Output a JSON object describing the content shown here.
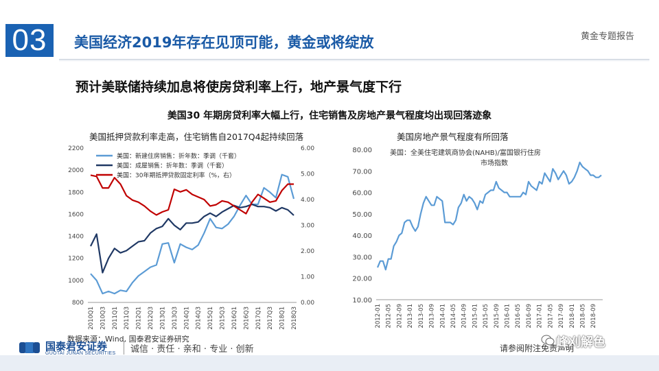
{
  "section": {
    "number": "03"
  },
  "slide_title": "美国经济2019年存在见顶可能，黄金或将绽放",
  "report_tag": "黄金专题报告",
  "headline": "预计美联储持续加息将使房贷利率上行，地产景气度下行",
  "subheadline": "美国30 年期房贷利率大幅上行，住宅销售及房地产景气程度均出现回落迹象",
  "source_note": "数据来源：Wind, 国泰君安证券研究",
  "footer": {
    "logo_cn": "国泰君安证券",
    "logo_en": "GUOTAI JUNAN SECURITIES",
    "slogan": "诚信 · 责任 · 亲和 · 专业 · 创新",
    "disclaimer": "请参阅附注免责声明",
    "watermark": "峰刈解色",
    "brand_color": "#1c4f94"
  },
  "chart_data": [
    {
      "type": "line",
      "title": "美国抵押贷款利率走高，住宅销售自2017Q4起持续回落",
      "categories": [
        "2010Q1",
        "2010Q2",
        "2010Q3",
        "2010Q4",
        "2011Q1",
        "2011Q2",
        "2011Q3",
        "2011Q4",
        "2012Q1",
        "2012Q2",
        "2012Q3",
        "2012Q4",
        "2013Q1",
        "2013Q2",
        "2013Q3",
        "2013Q4",
        "2014Q1",
        "2014Q2",
        "2014Q3",
        "2014Q4",
        "2015Q1",
        "2015Q2",
        "2015Q3",
        "2015Q4",
        "2016Q1",
        "2016Q2",
        "2016Q3",
        "2016Q4",
        "2017Q1",
        "2017Q2",
        "2017Q3",
        "2017Q4",
        "2018Q1",
        "2018Q2",
        "2018Q3"
      ],
      "tick_labels": [
        "2010Q1",
        "2010Q3",
        "2011Q1",
        "2011Q3",
        "2012Q1",
        "2012Q3",
        "2013Q1",
        "2013Q3",
        "2014Q1",
        "2014Q3",
        "2015Q1",
        "2015Q3",
        "2016Q1",
        "2016Q3",
        "2017Q1",
        "2017Q3",
        "2018Q1",
        "2018Q3"
      ],
      "ylim_left": [
        800,
        2200
      ],
      "yticks_left": [
        "800",
        "1000",
        "1200",
        "1400",
        "1600",
        "1800",
        "2000",
        "2200"
      ],
      "ylim_right": [
        0,
        6
      ],
      "yticks_right": [
        "0.00",
        "1.00",
        "2.00",
        "3.00",
        "4.00",
        "5.00",
        "6.00"
      ],
      "series": [
        {
          "name": "美国：新建住房销售：折年数：季调（千套）",
          "axis": "left",
          "color": "#5b9bd5",
          "values": [
            1060,
            1000,
            880,
            900,
            880,
            910,
            900,
            980,
            1040,
            1080,
            1120,
            1140,
            1330,
            1340,
            1160,
            1330,
            1300,
            1280,
            1320,
            1430,
            1560,
            1480,
            1470,
            1510,
            1580,
            1680,
            1770,
            1690,
            1690,
            1840,
            1800,
            1750,
            1960,
            1940,
            1740
          ]
        },
        {
          "name": "美国：成屋销售：折年数：季调（千套）",
          "axis": "left",
          "color": "#1f3864",
          "values": [
            1310,
            1420,
            1070,
            1200,
            1290,
            1250,
            1270,
            1310,
            1350,
            1360,
            1430,
            1470,
            1490,
            1560,
            1500,
            1460,
            1520,
            1520,
            1530,
            1580,
            1610,
            1580,
            1620,
            1650,
            1680,
            1660,
            1670,
            1690,
            1670,
            1670,
            1660,
            1630,
            1660,
            1640,
            1590
          ]
        },
        {
          "name": "美国：30年期抵押贷款固定利率（%，右）",
          "axis": "right",
          "color": "#c00000",
          "values": [
            4.95,
            4.9,
            4.45,
            4.45,
            4.85,
            4.6,
            4.15,
            3.98,
            3.9,
            3.75,
            3.55,
            3.4,
            3.52,
            3.6,
            4.4,
            4.3,
            4.38,
            4.2,
            4.1,
            4.0,
            3.75,
            3.8,
            3.95,
            3.9,
            3.75,
            3.6,
            3.45,
            3.9,
            4.2,
            4.05,
            3.9,
            3.95,
            4.35,
            4.6,
            4.6
          ]
        }
      ]
    },
    {
      "type": "line",
      "title": "美国房地产景气程度有所回落",
      "series_title": "美国：全美住宅建筑商协会(NAHB)/富国银行住房市场指数",
      "ylim": [
        10,
        80
      ],
      "yticks": [
        "10.00",
        "20.00",
        "30.00",
        "40.00",
        "50.00",
        "60.00",
        "70.00",
        "80.00"
      ],
      "tick_labels": [
        "2012-01",
        "2012-05",
        "2012-09",
        "2013-01",
        "2013-05",
        "2013-09",
        "2014-01",
        "2014-05",
        "2014-09",
        "2015-01",
        "2015-05",
        "2015-09",
        "2016-01",
        "2016-05",
        "2016-09",
        "2017-01",
        "2017-05",
        "2017-09",
        "2018-01",
        "2018-05",
        "2018-09"
      ],
      "color": "#5b9bd5",
      "x_start": "2012-01",
      "values": [
        25,
        28,
        28,
        24,
        29,
        29,
        35,
        37,
        40,
        41,
        46,
        47,
        47,
        44,
        42,
        44,
        50,
        55,
        58,
        56,
        54,
        54,
        58,
        57,
        56,
        46,
        46,
        46,
        45,
        47,
        53,
        55,
        59,
        56,
        58,
        57,
        55,
        52,
        56,
        55,
        59,
        60,
        61,
        61,
        65,
        62,
        61,
        60,
        60,
        58,
        58,
        58,
        58,
        58,
        60,
        59,
        65,
        63,
        62,
        61,
        65,
        64,
        69,
        67,
        65,
        71,
        69,
        66,
        68,
        70,
        68,
        64,
        65,
        67,
        70,
        74,
        72,
        71,
        70,
        68,
        68,
        67,
        67,
        68
      ]
    }
  ]
}
